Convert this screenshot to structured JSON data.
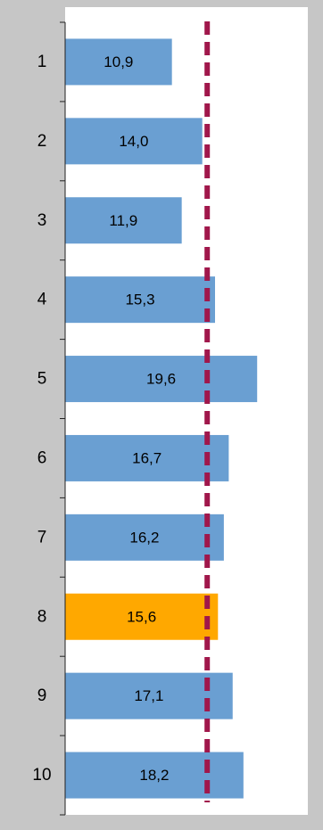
{
  "chart_data": {
    "type": "bar",
    "orientation": "horizontal",
    "categories": [
      "1",
      "2",
      "3",
      "4",
      "5",
      "6",
      "7",
      "8",
      "9",
      "10"
    ],
    "values": [
      10.9,
      14.0,
      11.9,
      15.3,
      19.6,
      16.7,
      16.2,
      15.6,
      17.1,
      18.2
    ],
    "value_labels": [
      "10,9",
      "14,0",
      "11,9",
      "15,3",
      "19,6",
      "16,7",
      "16,2",
      "15,6",
      "17,1",
      "18,2"
    ],
    "highlight_category": "8",
    "reference_line": {
      "value": 14.5,
      "style": "dashed"
    },
    "xlim": [
      0,
      25
    ],
    "grid": false,
    "colors": {
      "bar": "#6a9fd2",
      "highlight_bar": "#ffa800",
      "reference_line": "#a0174b",
      "plot_background": "#ffffff",
      "outer_background": "#c6c6c6",
      "axis": "#222222"
    }
  }
}
